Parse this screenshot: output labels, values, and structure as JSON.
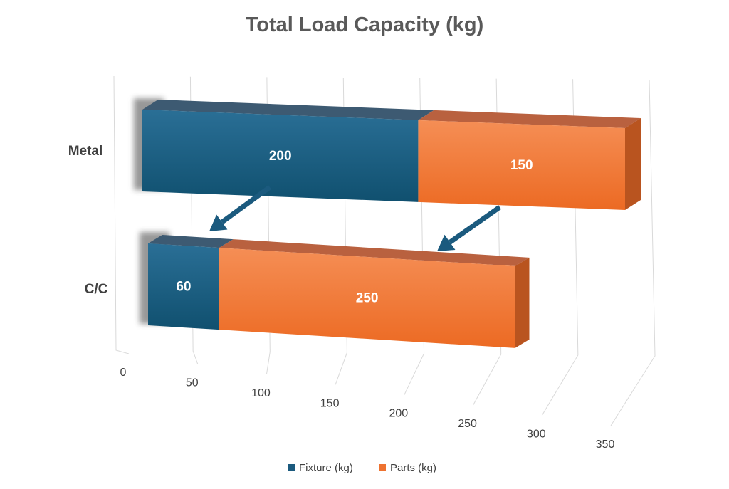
{
  "chart_data": {
    "type": "bar",
    "orientation": "horizontal",
    "stacked": true,
    "three_d": true,
    "title": "Total Load Capacity (kg)",
    "categories": [
      "Metal",
      "C/C"
    ],
    "series": [
      {
        "name": "Fixture (kg)",
        "values": [
          200,
          60
        ],
        "color": "#1b5a7e"
      },
      {
        "name": "Parts (kg)",
        "values": [
          150,
          250
        ],
        "color": "#ee7230"
      }
    ],
    "xlim": [
      0,
      350
    ],
    "xticks": [
      "0",
      "50",
      "100",
      "150",
      "200",
      "250",
      "300",
      "350"
    ],
    "grid": true,
    "legend": "bottom",
    "annotations": [
      "arrow from Metal Fixture to C/C Fixture",
      "arrow from Metal Parts to C/C Parts"
    ],
    "arrow_color": "#1b5a7e"
  }
}
